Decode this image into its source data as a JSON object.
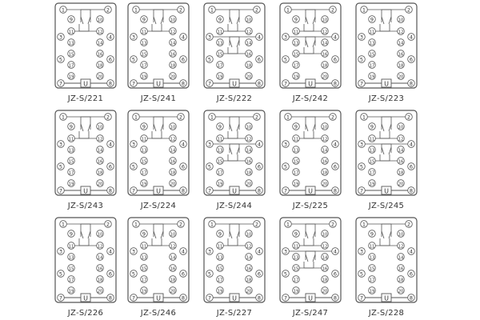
{
  "panels": [
    {
      "label": "JZ-S/221",
      "contacts": 1
    },
    {
      "label": "JZ-S/241",
      "contacts": 1
    },
    {
      "label": "JZ-S/222",
      "contacts": 4
    },
    {
      "label": "JZ-S/242",
      "contacts": 4
    },
    {
      "label": "JZ-S/223",
      "contacts": 2
    },
    {
      "label": "JZ-S/243",
      "contacts": 1
    },
    {
      "label": "JZ-S/224",
      "contacts": 2
    },
    {
      "label": "JZ-S/244",
      "contacts": 2
    },
    {
      "label": "JZ-S/225",
      "contacts": 2
    },
    {
      "label": "JZ-S/245",
      "contacts": 2
    },
    {
      "label": "JZ-S/226",
      "contacts": 1
    },
    {
      "label": "JZ-S/246",
      "contacts": 1
    },
    {
      "label": "JZ-S/227",
      "contacts": 2
    },
    {
      "label": "JZ-S/247",
      "contacts": 2
    },
    {
      "label": "JZ-S/228",
      "contacts": 2
    }
  ],
  "coil_label": "U",
  "colors": {
    "line": "#555555",
    "text": "#333333"
  }
}
